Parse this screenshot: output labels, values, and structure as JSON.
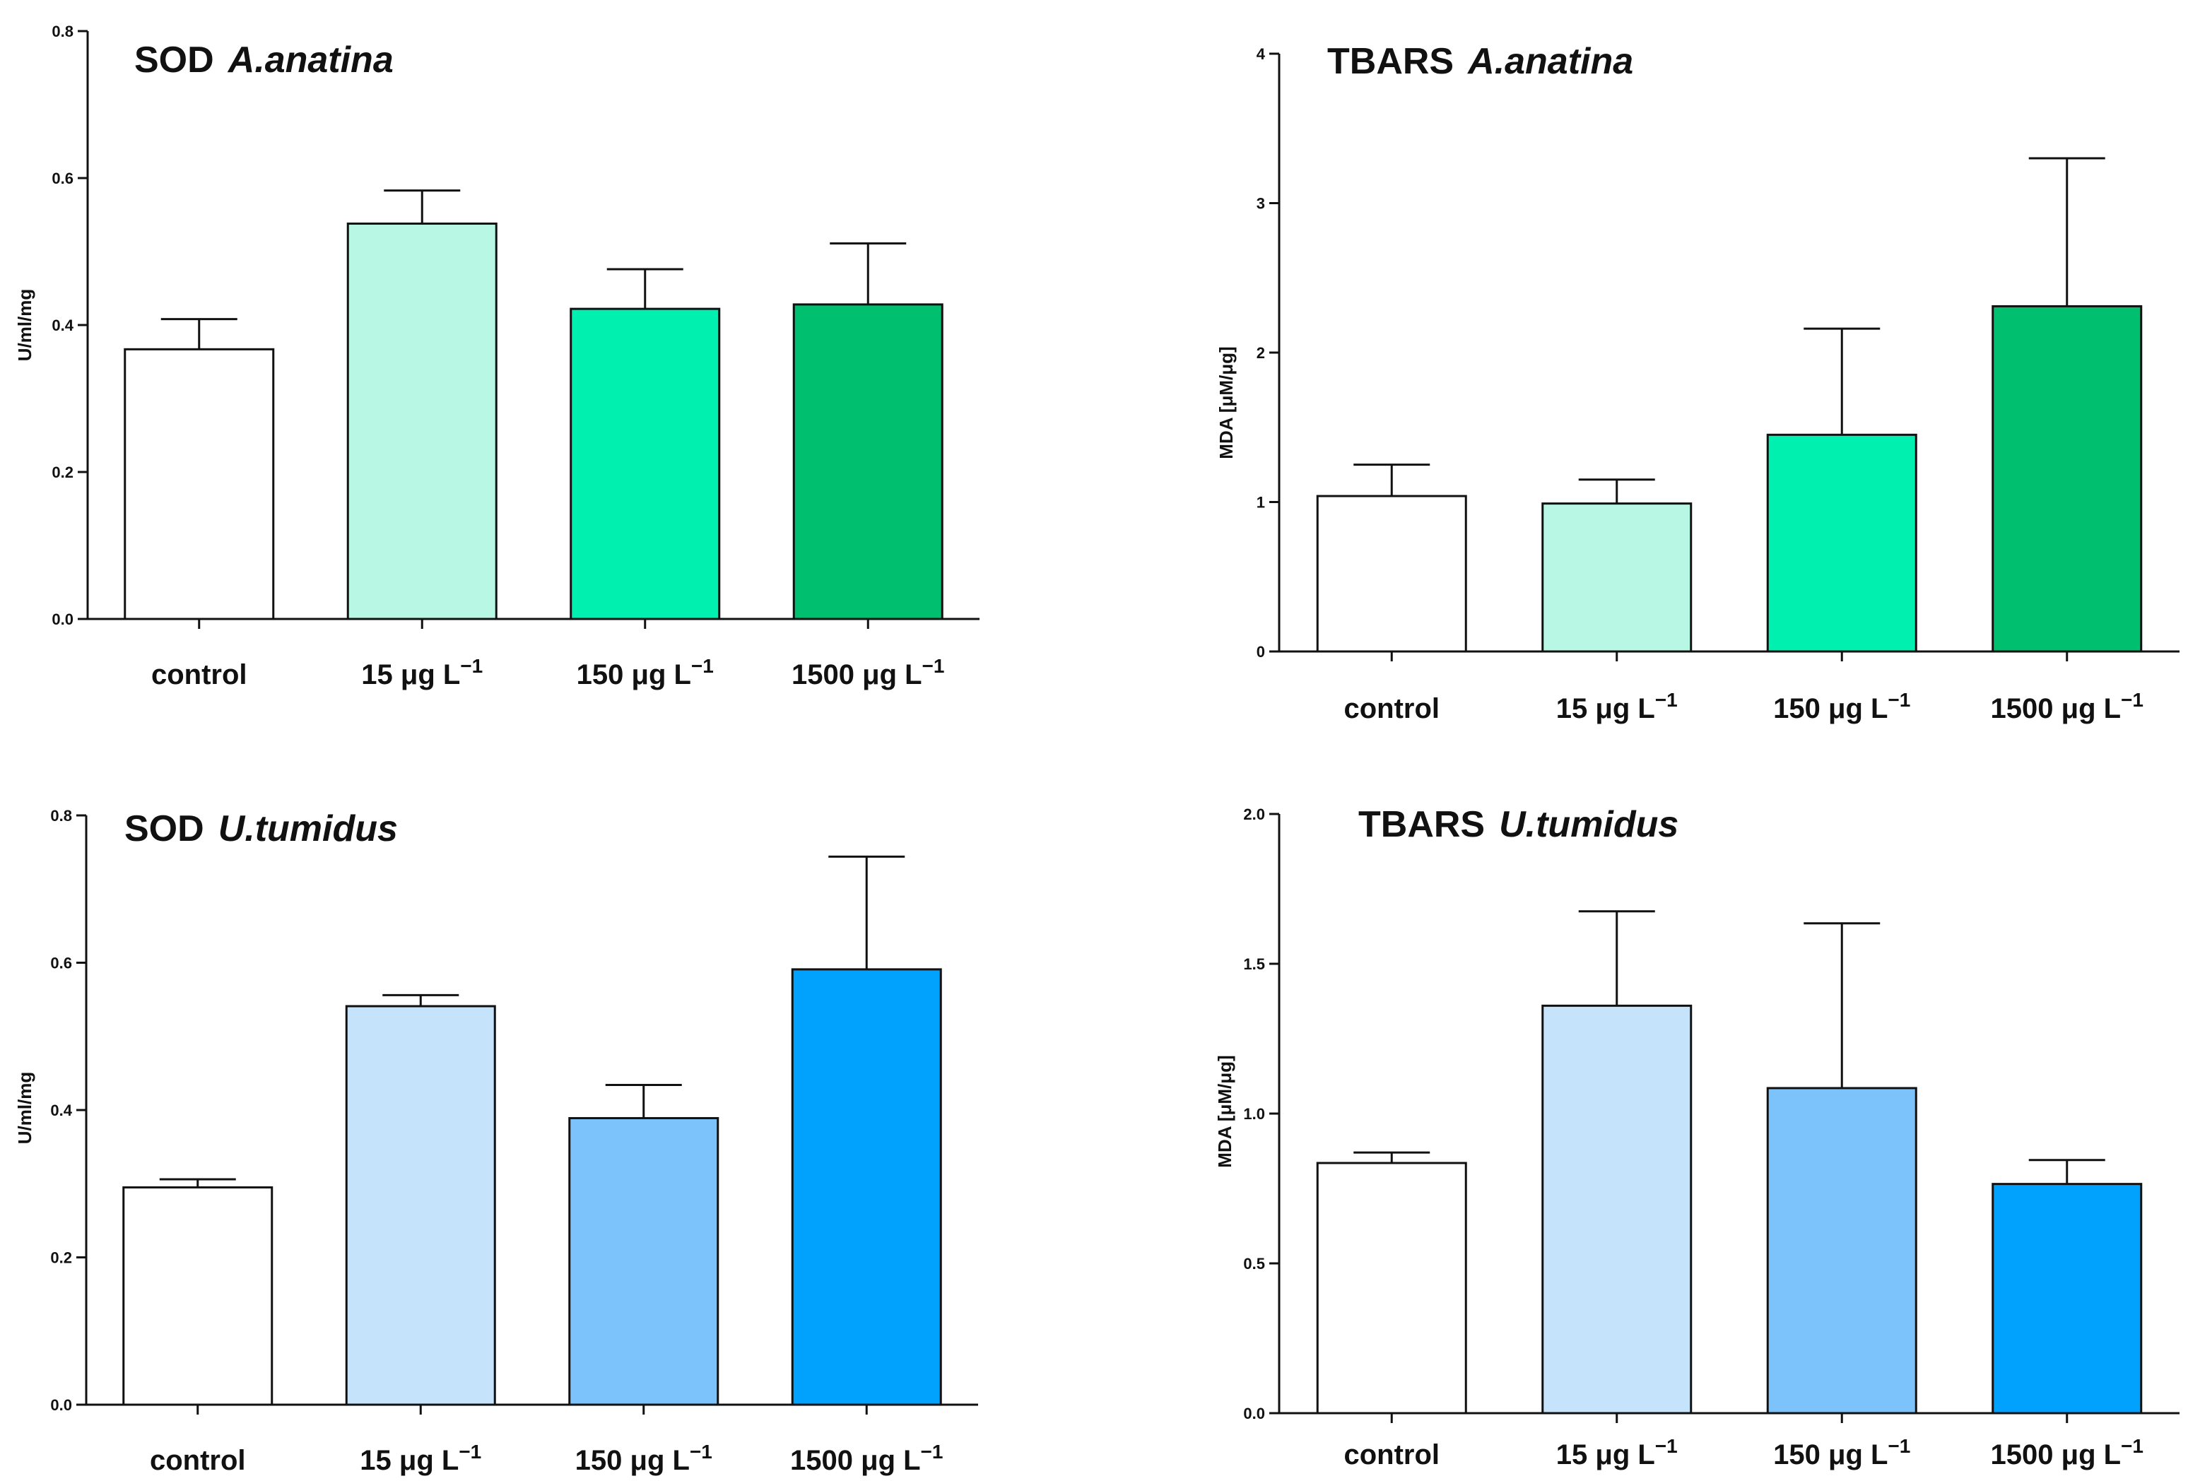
{
  "chart_data": [
    {
      "id": "sod-anatina",
      "type": "bar",
      "title": "SOD",
      "title_species": "A.anatina",
      "ylabel": "U/ml/mg",
      "xlabel": "",
      "ylim": [
        0,
        0.8
      ],
      "yticks": [
        0.0,
        0.2,
        0.4,
        0.6,
        0.8
      ],
      "ytick_labels": [
        "0.0",
        "0.2",
        "0.4",
        "0.6",
        "0.8"
      ],
      "categories": [
        {
          "prefix": "control",
          "unit": "",
          "sup": ""
        },
        {
          "prefix": "15 ",
          "unit": "μg L",
          "sup": "−1"
        },
        {
          "prefix": "150 ",
          "unit": "μg L",
          "sup": "−1"
        },
        {
          "prefix": "1500 ",
          "unit": "μg L",
          "sup": "−1"
        }
      ],
      "values": [
        0.367,
        0.538,
        0.422,
        0.428
      ],
      "errors": [
        0.041,
        0.045,
        0.054,
        0.083
      ],
      "colors": [
        "#ffffff",
        "#b8f7e4",
        "#00f0b0",
        "#00c070"
      ]
    },
    {
      "id": "tbars-anatina",
      "type": "bar",
      "title": "TBARS",
      "title_species": "A.anatina",
      "ylabel": "MDA  [μM/μg]",
      "xlabel": "",
      "ylim": [
        0,
        4
      ],
      "yticks": [
        0,
        1,
        2,
        3,
        4
      ],
      "ytick_labels": [
        "0",
        "1",
        "2",
        "3",
        "4"
      ],
      "categories": [
        {
          "prefix": "control",
          "unit": "",
          "sup": ""
        },
        {
          "prefix": "15 ",
          "unit": "μg L",
          "sup": "−1"
        },
        {
          "prefix": "150 ",
          "unit": "μg L",
          "sup": "−1"
        },
        {
          "prefix": "1500 ",
          "unit": "μg L",
          "sup": "−1"
        }
      ],
      "values": [
        1.04,
        0.99,
        1.45,
        2.31
      ],
      "errors": [
        0.21,
        0.16,
        0.71,
        0.99
      ],
      "colors": [
        "#ffffff",
        "#b8f7e4",
        "#00f0b0",
        "#00c070"
      ]
    },
    {
      "id": "sod-tumidus",
      "type": "bar",
      "title": "SOD",
      "title_species": "U.tumidus",
      "ylabel": "U/ml/mg",
      "xlabel": "",
      "ylim": [
        0,
        0.8
      ],
      "yticks": [
        0.0,
        0.2,
        0.4,
        0.6,
        0.8
      ],
      "ytick_labels": [
        "0.0",
        "0.2",
        "0.4",
        "0.6",
        "0.8"
      ],
      "categories": [
        {
          "prefix": "control",
          "unit": "",
          "sup": ""
        },
        {
          "prefix": "15 ",
          "unit": "μg L",
          "sup": "−1"
        },
        {
          "prefix": "150 ",
          "unit": "μg L",
          "sup": "−1"
        },
        {
          "prefix": "1500 ",
          "unit": "μg L",
          "sup": "−1"
        }
      ],
      "values": [
        0.295,
        0.541,
        0.389,
        0.591
      ],
      "errors": [
        0.011,
        0.015,
        0.045,
        0.153
      ],
      "colors": [
        "#ffffff",
        "#c5e3fa",
        "#7cc2fb",
        "#00a2fe"
      ]
    },
    {
      "id": "tbars-tumidus",
      "type": "bar",
      "title": "TBARS",
      "title_species": "U.tumidus",
      "ylabel": "MDA  [μM/μg]",
      "xlabel": "",
      "ylim": [
        0,
        2.0
      ],
      "yticks": [
        0.0,
        0.5,
        1.0,
        1.5,
        2.0
      ],
      "ytick_labels": [
        "0.0",
        "0.5",
        "1.0",
        "1.5",
        "2.0"
      ],
      "categories": [
        {
          "prefix": "control",
          "unit": "",
          "sup": ""
        },
        {
          "prefix": "15 ",
          "unit": "μg L",
          "sup": "−1"
        },
        {
          "prefix": "150 ",
          "unit": "μg L",
          "sup": "−1"
        },
        {
          "prefix": "1500 ",
          "unit": "μg L",
          "sup": "−1"
        }
      ],
      "values": [
        0.835,
        1.36,
        1.085,
        0.765
      ],
      "errors": [
        0.035,
        0.315,
        0.55,
        0.08
      ],
      "colors": [
        "#ffffff",
        "#c5e3fa",
        "#7cc2fb",
        "#00a2fe"
      ]
    }
  ]
}
